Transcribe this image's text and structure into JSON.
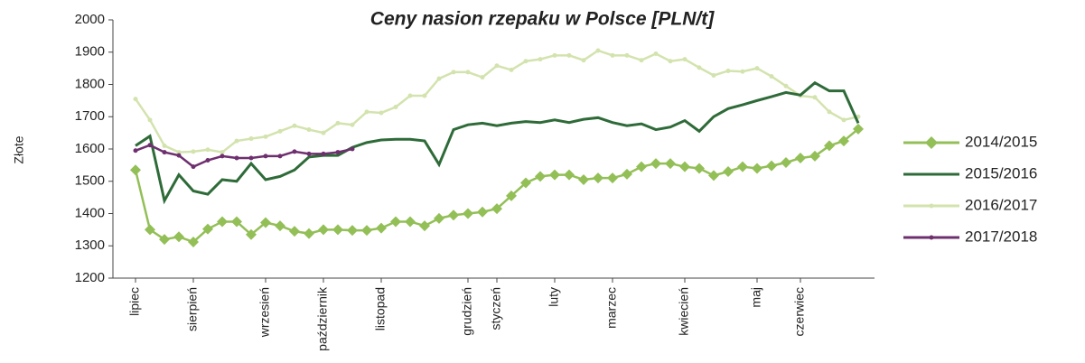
{
  "chart_data": {
    "type": "line",
    "title": "Ceny nasion rzepaku w Polsce [PLN/t]",
    "y_label": "Złote",
    "categories": [
      "lipiec",
      null,
      null,
      null,
      "sierpień",
      null,
      null,
      null,
      null,
      "wrzesień",
      null,
      null,
      null,
      "październik",
      null,
      null,
      null,
      "listopad",
      null,
      null,
      null,
      null,
      null,
      "grudzień",
      null,
      "styczeń",
      null,
      null,
      null,
      "luty",
      null,
      null,
      null,
      "marzec",
      null,
      null,
      null,
      null,
      "kwiecień",
      null,
      null,
      null,
      null,
      "maj",
      null,
      null,
      "czerwiec",
      null,
      null,
      null,
      null
    ],
    "ylim": [
      1200,
      2000
    ],
    "yticks": [
      1200,
      1300,
      1400,
      1500,
      1600,
      1700,
      1800,
      1900,
      2000
    ],
    "legend": "right",
    "series": [
      {
        "name": "2014/2015",
        "color": "#93bf57",
        "marker": "diamond",
        "values": [
          1535,
          1350,
          1320,
          1328,
          1312,
          1352,
          1375,
          1375,
          1335,
          1372,
          1362,
          1345,
          1338,
          1350,
          1350,
          1348,
          1348,
          1355,
          1375,
          1375,
          1362,
          1385,
          1395,
          1400,
          1405,
          1415,
          1455,
          1495,
          1515,
          1520,
          1520,
          1505,
          1510,
          1510,
          1522,
          1545,
          1555,
          1555,
          1545,
          1540,
          1518,
          1530,
          1545,
          1540,
          1548,
          1558,
          1572,
          1578,
          1610,
          1625,
          1662
        ]
      },
      {
        "name": "2015/2016",
        "color": "#2e6b38",
        "marker": "none",
        "values": [
          1610,
          1640,
          1440,
          1520,
          1470,
          1460,
          1505,
          1500,
          1555,
          1505,
          1515,
          1535,
          1575,
          1580,
          1580,
          1605,
          1620,
          1628,
          1630,
          1630,
          1625,
          1552,
          1660,
          1675,
          1680,
          1672,
          1680,
          1685,
          1682,
          1690,
          1682,
          1692,
          1697,
          1682,
          1672,
          1678,
          1660,
          1668,
          1688,
          1655,
          1700,
          1725,
          1737,
          1750,
          1762,
          1775,
          1767,
          1805,
          1780,
          1780,
          1680
        ]
      },
      {
        "name": "2016/2017",
        "color": "#d3e3ae",
        "marker": "circle",
        "values": [
          1755,
          1690,
          1610,
          1590,
          1592,
          1598,
          1590,
          1625,
          1632,
          1638,
          1655,
          1672,
          1660,
          1650,
          1680,
          1675,
          1715,
          1712,
          1730,
          1765,
          1765,
          1818,
          1838,
          1838,
          1822,
          1858,
          1845,
          1872,
          1878,
          1890,
          1890,
          1875,
          1905,
          1890,
          1890,
          1875,
          1895,
          1872,
          1878,
          1852,
          1828,
          1842,
          1840,
          1850,
          1825,
          1795,
          1765,
          1760,
          1715,
          1690,
          1700
        ]
      },
      {
        "name": "2017/2018",
        "color": "#6e2f6e",
        "marker": "circle",
        "values": [
          1595,
          1612,
          1590,
          1580,
          1545,
          1565,
          1578,
          1572,
          1572,
          1578,
          1578,
          1592,
          1585,
          1585,
          1590,
          1600,
          null,
          null,
          null,
          null,
          null,
          null,
          null,
          null,
          null,
          null,
          null,
          null,
          null,
          null,
          null,
          null,
          null,
          null,
          null,
          null,
          null,
          null,
          null,
          null,
          null,
          null,
          null,
          null,
          null,
          null,
          null,
          null,
          null,
          null,
          null
        ]
      }
    ]
  }
}
